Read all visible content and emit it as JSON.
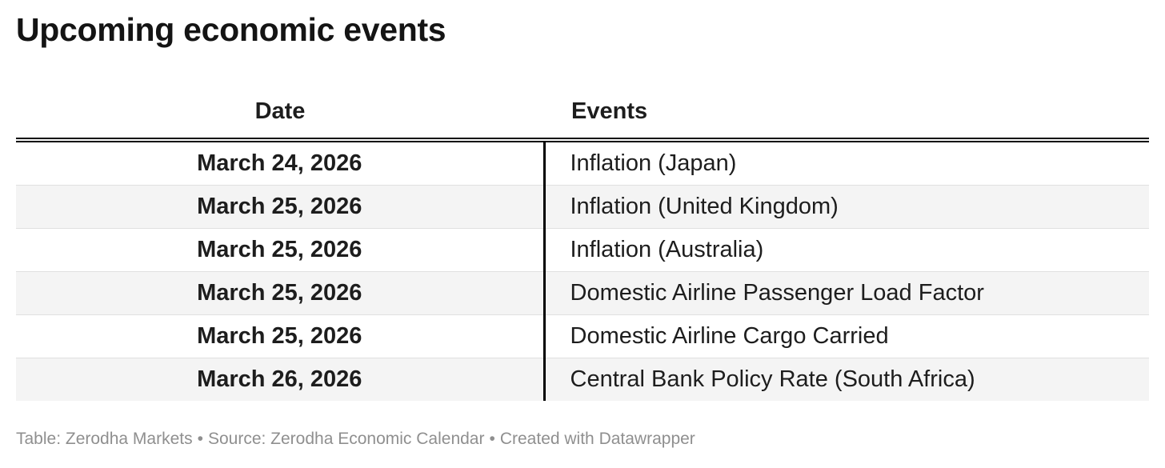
{
  "page": {
    "title": "Upcoming economic events"
  },
  "table": {
    "columns": [
      {
        "label": "Date"
      },
      {
        "label": "Events"
      }
    ],
    "rows": [
      {
        "date": "March 24, 2026",
        "event": "Inflation (Japan)"
      },
      {
        "date": "March 25, 2026",
        "event": "Inflation (United Kingdom)"
      },
      {
        "date": "March 25, 2026",
        "event": "Inflation (Australia)"
      },
      {
        "date": "March 25, 2026",
        "event": "Domestic Airline Passenger Load Factor"
      },
      {
        "date": "March 25, 2026",
        "event": "Domestic Airline Cargo Carried"
      },
      {
        "date": "March 26, 2026",
        "event": "Central Bank Policy Rate (South Africa)"
      }
    ]
  },
  "footer": {
    "table_credit": "Table: Zerodha Markets",
    "source": "Source: Zerodha Economic Calendar",
    "created": "Created with Datawrapper",
    "separator": "•"
  },
  "colors": {
    "title_text": "#141414",
    "body_text": "#1d1d1d",
    "zebra_stripe": "#f4f4f4",
    "row_separator": "#e0e0e0",
    "header_border": "#000000",
    "column_divider": "#000000",
    "footer_text": "#8f8f8f",
    "background": "#ffffff"
  },
  "chart_data": {
    "type": "table",
    "title": "Upcoming economic events",
    "columns": [
      "Date",
      "Events"
    ],
    "rows": [
      [
        "March 24, 2026",
        "Inflation (Japan)"
      ],
      [
        "March 25, 2026",
        "Inflation (United Kingdom)"
      ],
      [
        "March 25, 2026",
        "Inflation (Australia)"
      ],
      [
        "March 25, 2026",
        "Domestic Airline Passenger Load Factor"
      ],
      [
        "March 25, 2026",
        "Domestic Airline Cargo Carried"
      ],
      [
        "March 26, 2026",
        "Central Bank Policy Rate (South Africa)"
      ]
    ],
    "layout_hints": {
      "date_column_align": "center",
      "events_column_align": "left",
      "zebra_striping": true,
      "thick_double_border_under_header": true,
      "black_vertical_divider_between_columns": true
    },
    "footnote": "Table: Zerodha Markets • Source: Zerodha Economic Calendar • Created with Datawrapper"
  }
}
